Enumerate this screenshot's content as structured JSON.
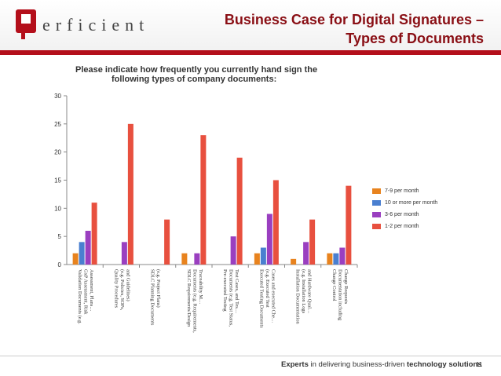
{
  "header": {
    "logo_text": "erficient",
    "title_line1": "Business Case for Digital Signatures –",
    "title_line2": "Types of Documents"
  },
  "chart_data": {
    "type": "bar",
    "title_line1": "Please indicate how frequently you currently hand sign the",
    "title_line2": "following types of company documents:",
    "categories": [
      "Validation Documents (e.g. GxP Assessment, Risk Assessment, Plans…",
      "Quality Procedures (e.g. Policies, SOPs, and Guidelines)",
      "SDLC Planning Documents (e.g. Project Plans)",
      "SDLC Requirements/Design Documents (e.g. Requirements, Traceability M…",
      "Pre-executed Testing Documents (e.g. Test Status, Test Cases, and Tes…",
      "Executed Testing Documents (e.g. Executed Test Cases and executed Che…",
      "Installation Documentation (e.g. Installation Logs and Hardware Qual…",
      "Change Control Documentation including Change Requests"
    ],
    "category_lines": [
      [
        "Validation Documents (e.g.",
        "GxP Assessment, Risk",
        "Assessment, Plans…"
      ],
      [
        "Quality Procedures",
        "(e.g. Policies, SOPs,",
        "and Guidelines)"
      ],
      [
        "SDLC Planning Documents",
        "(e.g. Project Plans)"
      ],
      [
        "SDLC Requirements/Design",
        "Documents (e.g. Requirements,",
        "Traceability M…"
      ],
      [
        "Pre-executed Testing",
        "Documents (e.g. Test Status,",
        "Test Cases, and Tes…"
      ],
      [
        "Executed Testing Documents",
        "(e.g. Executed Test",
        "Cases and executed Che…"
      ],
      [
        "Installation Documentation",
        "(e.g. Installation Logs",
        "and Hardware Qual…"
      ],
      [
        "Change Control",
        "Documentation including",
        "Change Requests"
      ]
    ],
    "series": [
      {
        "name": "7-9 per month",
        "color": "#e8831e",
        "values": [
          2,
          0,
          0,
          2,
          0,
          2,
          1,
          2
        ]
      },
      {
        "name": "10 or more per month",
        "color": "#4a7fd0",
        "values": [
          4,
          0,
          0,
          0,
          0,
          3,
          0,
          2
        ]
      },
      {
        "name": "3-6 per month",
        "color": "#9a3fc0",
        "values": [
          6,
          4,
          0,
          2,
          5,
          9,
          4,
          3
        ]
      },
      {
        "name": "1-2 per month",
        "color": "#e8503f",
        "values": [
          11,
          25,
          8,
          23,
          19,
          15,
          8,
          14
        ]
      }
    ],
    "ylim": [
      0,
      30
    ],
    "yticks": [
      0,
      5,
      10,
      15,
      20,
      25,
      30
    ],
    "ytick_labels": [
      "0",
      "5",
      "10",
      "15",
      "20",
      "25",
      "30"
    ],
    "grid": false,
    "legend_position": "right"
  },
  "footer": {
    "tagline_bold1": "Experts",
    "tagline_mid": " in delivering business-driven ",
    "tagline_bold2": "technology solutions",
    "page_number": "11"
  }
}
